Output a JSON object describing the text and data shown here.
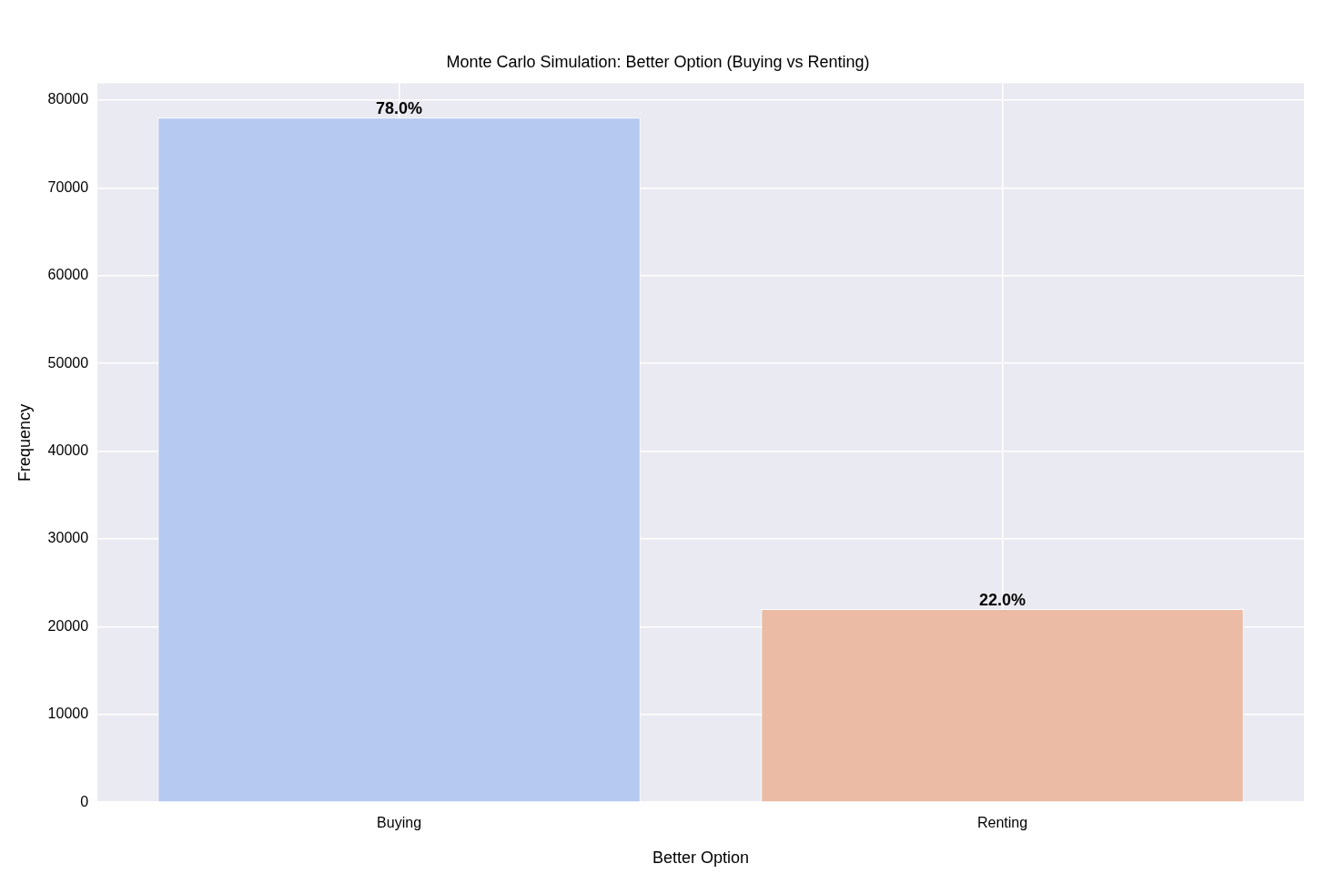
{
  "chart_data": {
    "type": "bar",
    "title": "Monte Carlo Simulation: Better Option (Buying vs Renting)",
    "xlabel": "Better Option",
    "ylabel": "Frequency",
    "categories": [
      "Buying",
      "Renting"
    ],
    "values": [
      78000,
      22000
    ],
    "colors": [
      "#b5c9f1",
      "#ecbba5"
    ],
    "annotations": [
      {
        "text": "78.0%",
        "x": "Buying",
        "y": 78000
      },
      {
        "text": "22.0%",
        "x": "Renting",
        "y": 22000
      }
    ],
    "ylim": [
      0,
      81900
    ],
    "yticks": [
      0,
      10000,
      20000,
      30000,
      40000,
      50000,
      60000,
      70000,
      80000
    ],
    "grid": true,
    "legend": false
  }
}
